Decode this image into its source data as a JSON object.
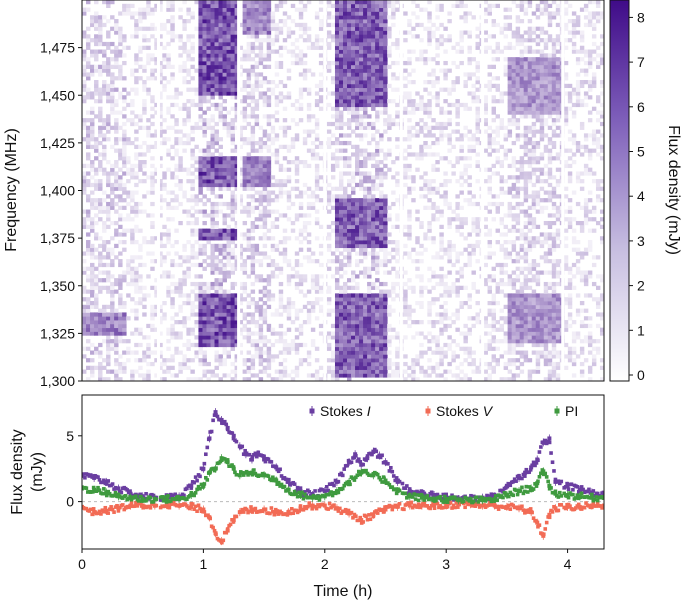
{
  "chart_data": [
    {
      "type": "heatmap",
      "ylabel": "Frequency (MHz)",
      "ylim": [
        1300,
        1500
      ],
      "yticks": [
        "1,300",
        "1,325",
        "1,350",
        "1,375",
        "1,400",
        "1,425",
        "1,450",
        "1,475"
      ],
      "xlim": [
        0,
        4.3
      ],
      "colorbar": {
        "label": "Flux density (mJy)",
        "range": [
          0,
          8.3
        ],
        "ticks": [
          "0",
          "1",
          "2",
          "3",
          "4",
          "5",
          "6",
          "7",
          "8"
        ],
        "color_low": "#ffffff",
        "color_high": "#3f0b88"
      },
      "gaps_h": [
        0.63,
        1.29,
        2.0,
        2.63,
        3.3,
        3.96
      ],
      "bright_bursts": [
        {
          "t_start": 0.95,
          "t_end": 1.29,
          "freq_bands": [
            [
              1451,
              1500
            ],
            [
              1402,
              1418
            ],
            [
              1375,
              1380
            ],
            [
              1318,
              1345
            ]
          ],
          "peak": 8.0
        },
        {
          "t_start": 1.31,
          "t_end": 1.55,
          "freq_bands": [
            [
              1482,
              1500
            ],
            [
              1402,
              1418
            ]
          ],
          "peak": 6.0
        },
        {
          "t_start": 2.1,
          "t_end": 2.5,
          "freq_bands": [
            [
              1445,
              1500
            ],
            [
              1370,
              1395
            ],
            [
              1302,
              1345
            ]
          ],
          "peak": 7.5
        },
        {
          "t_start": 3.5,
          "t_end": 3.96,
          "freq_bands": [
            [
              1440,
              1470
            ],
            [
              1320,
              1345
            ]
          ],
          "peak": 5.0
        },
        {
          "t_start": 0.0,
          "t_end": 0.35,
          "freq_bands": [
            [
              1325,
              1335
            ]
          ],
          "peak": 6.0
        }
      ]
    },
    {
      "type": "scatter",
      "xlabel": "Time (h)",
      "ylabel": "Flux density (mJy)",
      "xlim": [
        0,
        4.3
      ],
      "ylim": [
        -3.6,
        8.1
      ],
      "xticks": [
        "0",
        "1",
        "2",
        "3",
        "4"
      ],
      "yticks": [
        "0",
        "5"
      ],
      "legend_position": "top-right",
      "series": [
        {
          "name": "Stokes I",
          "color": "#6a3ea1",
          "x": [
            0.0,
            0.1,
            0.2,
            0.3,
            0.4,
            0.5,
            0.6,
            0.7,
            0.8,
            0.9,
            1.0,
            1.05,
            1.1,
            1.15,
            1.2,
            1.25,
            1.3,
            1.35,
            1.4,
            1.45,
            1.5,
            1.6,
            1.7,
            1.8,
            1.9,
            2.0,
            2.1,
            2.2,
            2.25,
            2.3,
            2.35,
            2.4,
            2.45,
            2.5,
            2.6,
            2.7,
            2.8,
            2.9,
            3.0,
            3.1,
            3.2,
            3.3,
            3.4,
            3.5,
            3.6,
            3.65,
            3.7,
            3.75,
            3.8,
            3.85,
            3.9,
            4.0,
            4.1,
            4.2,
            4.3
          ],
          "y": [
            2.0,
            1.8,
            1.5,
            1.0,
            0.6,
            0.4,
            0.3,
            0.3,
            0.4,
            1.2,
            2.5,
            4.8,
            6.8,
            6.2,
            5.6,
            5.0,
            4.2,
            3.6,
            3.2,
            3.6,
            3.2,
            2.6,
            1.5,
            0.8,
            0.5,
            0.8,
            1.5,
            3.0,
            3.6,
            2.8,
            3.3,
            3.8,
            3.5,
            3.0,
            1.5,
            0.8,
            0.6,
            0.5,
            0.3,
            0.2,
            0.2,
            0.3,
            0.4,
            1.2,
            1.8,
            2.2,
            2.6,
            3.2,
            4.5,
            4.8,
            1.5,
            1.2,
            0.9,
            0.7,
            0.5
          ]
        },
        {
          "name": "Stokes V",
          "color": "#f26b55",
          "x": [
            0.0,
            0.1,
            0.2,
            0.3,
            0.4,
            0.5,
            0.6,
            0.7,
            0.8,
            0.9,
            1.0,
            1.05,
            1.1,
            1.15,
            1.2,
            1.25,
            1.3,
            1.4,
            1.5,
            1.6,
            1.7,
            1.8,
            1.9,
            2.0,
            2.1,
            2.2,
            2.3,
            2.4,
            2.5,
            2.6,
            2.7,
            2.8,
            2.9,
            3.0,
            3.1,
            3.2,
            3.3,
            3.4,
            3.5,
            3.6,
            3.7,
            3.75,
            3.8,
            3.85,
            3.9,
            4.0,
            4.1,
            4.2,
            4.3
          ],
          "y": [
            -0.4,
            -0.8,
            -0.7,
            -0.5,
            -0.3,
            -0.3,
            -0.3,
            -0.2,
            -0.3,
            -0.4,
            -0.6,
            -1.2,
            -2.4,
            -3.0,
            -2.2,
            -1.4,
            -0.8,
            -0.6,
            -0.6,
            -0.8,
            -0.8,
            -0.5,
            -0.3,
            -0.3,
            -0.5,
            -0.9,
            -1.4,
            -1.0,
            -0.6,
            -0.4,
            -0.3,
            -0.3,
            -0.3,
            -0.3,
            -0.2,
            -0.2,
            -0.3,
            -0.3,
            -0.4,
            -0.5,
            -0.8,
            -1.6,
            -2.6,
            -1.0,
            -0.5,
            -0.4,
            -0.4,
            -0.3,
            -0.3
          ]
        },
        {
          "name": "PI",
          "color": "#3f9a3f",
          "x": [
            0.0,
            0.1,
            0.2,
            0.3,
            0.4,
            0.5,
            0.6,
            0.7,
            0.8,
            0.9,
            1.0,
            1.05,
            1.1,
            1.15,
            1.2,
            1.25,
            1.3,
            1.4,
            1.5,
            1.6,
            1.7,
            1.8,
            1.9,
            2.0,
            2.1,
            2.2,
            2.3,
            2.4,
            2.5,
            2.6,
            2.7,
            2.8,
            2.9,
            3.0,
            3.1,
            3.2,
            3.3,
            3.4,
            3.5,
            3.6,
            3.7,
            3.75,
            3.8,
            3.85,
            3.9,
            4.0,
            4.1,
            4.2,
            4.3
          ],
          "y": [
            1.0,
            0.9,
            0.7,
            0.4,
            0.3,
            0.2,
            0.2,
            0.2,
            0.2,
            0.5,
            1.2,
            2.2,
            2.5,
            3.3,
            3.0,
            2.5,
            2.0,
            2.2,
            2.0,
            1.6,
            0.9,
            0.5,
            0.3,
            0.4,
            0.8,
            1.5,
            2.2,
            2.0,
            1.6,
            0.8,
            0.4,
            0.3,
            0.2,
            0.2,
            0.1,
            0.1,
            0.1,
            0.2,
            0.5,
            0.8,
            1.0,
            1.4,
            2.3,
            1.2,
            0.6,
            0.5,
            0.4,
            0.3,
            0.3
          ]
        }
      ]
    }
  ],
  "colors": {
    "heatmap_high": "#3f0b88",
    "stokes_i": "#6a3ea1",
    "stokes_v": "#f26b55",
    "pi": "#3f9a3f"
  }
}
